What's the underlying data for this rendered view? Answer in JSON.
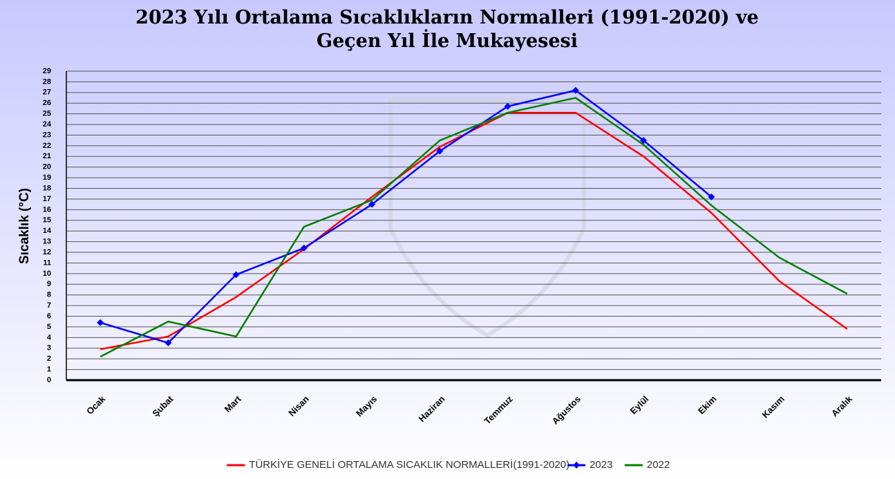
{
  "chart_data": {
    "type": "line",
    "title": [
      "2023 Yılı Ortalama Sıcaklıkların Normalleri (1991-2020) ve",
      "Geçen Yıl İle Mukayesesi"
    ],
    "y_label": "Sıcaklık (°C)",
    "categories": [
      "Ocak",
      "Şubat",
      "Mart",
      "Nisan",
      "Mayıs",
      "Haziran",
      "Temmuz",
      "Ağustos",
      "Eylül",
      "Ekim",
      "Kasım",
      "Aralık"
    ],
    "series": [
      {
        "name": "TÜRKİYE GENELİ ORTALAMA SICAKLIK NORMALLERİ(1991-2020)",
        "color": "#ff0000",
        "values": [
          2.9,
          4.1,
          7.8,
          12.3,
          17.2,
          21.9,
          25.1,
          25.1,
          21.0,
          15.7,
          9.3,
          4.8
        ]
      },
      {
        "name": "2023",
        "color": "#0000ff",
        "marker": "diamond",
        "values": [
          5.4,
          3.5,
          9.9,
          12.4,
          16.5,
          21.5,
          25.7,
          27.2,
          22.5,
          17.2,
          null,
          null
        ]
      },
      {
        "name": "2022",
        "color": "#008000",
        "values": [
          2.2,
          5.5,
          4.1,
          14.4,
          16.9,
          22.5,
          25.1,
          26.5,
          22.1,
          16.4,
          11.5,
          8.1
        ]
      }
    ],
    "ylim": [
      0,
      29
    ],
    "yticks": [
      0,
      1,
      2,
      3,
      4,
      5,
      6,
      7,
      8,
      9,
      10,
      11,
      12,
      13,
      14,
      15,
      16,
      17,
      18,
      19,
      20,
      21,
      22,
      23,
      24,
      25,
      26,
      27,
      28,
      29
    ],
    "grid": true,
    "legend": "bottom"
  }
}
